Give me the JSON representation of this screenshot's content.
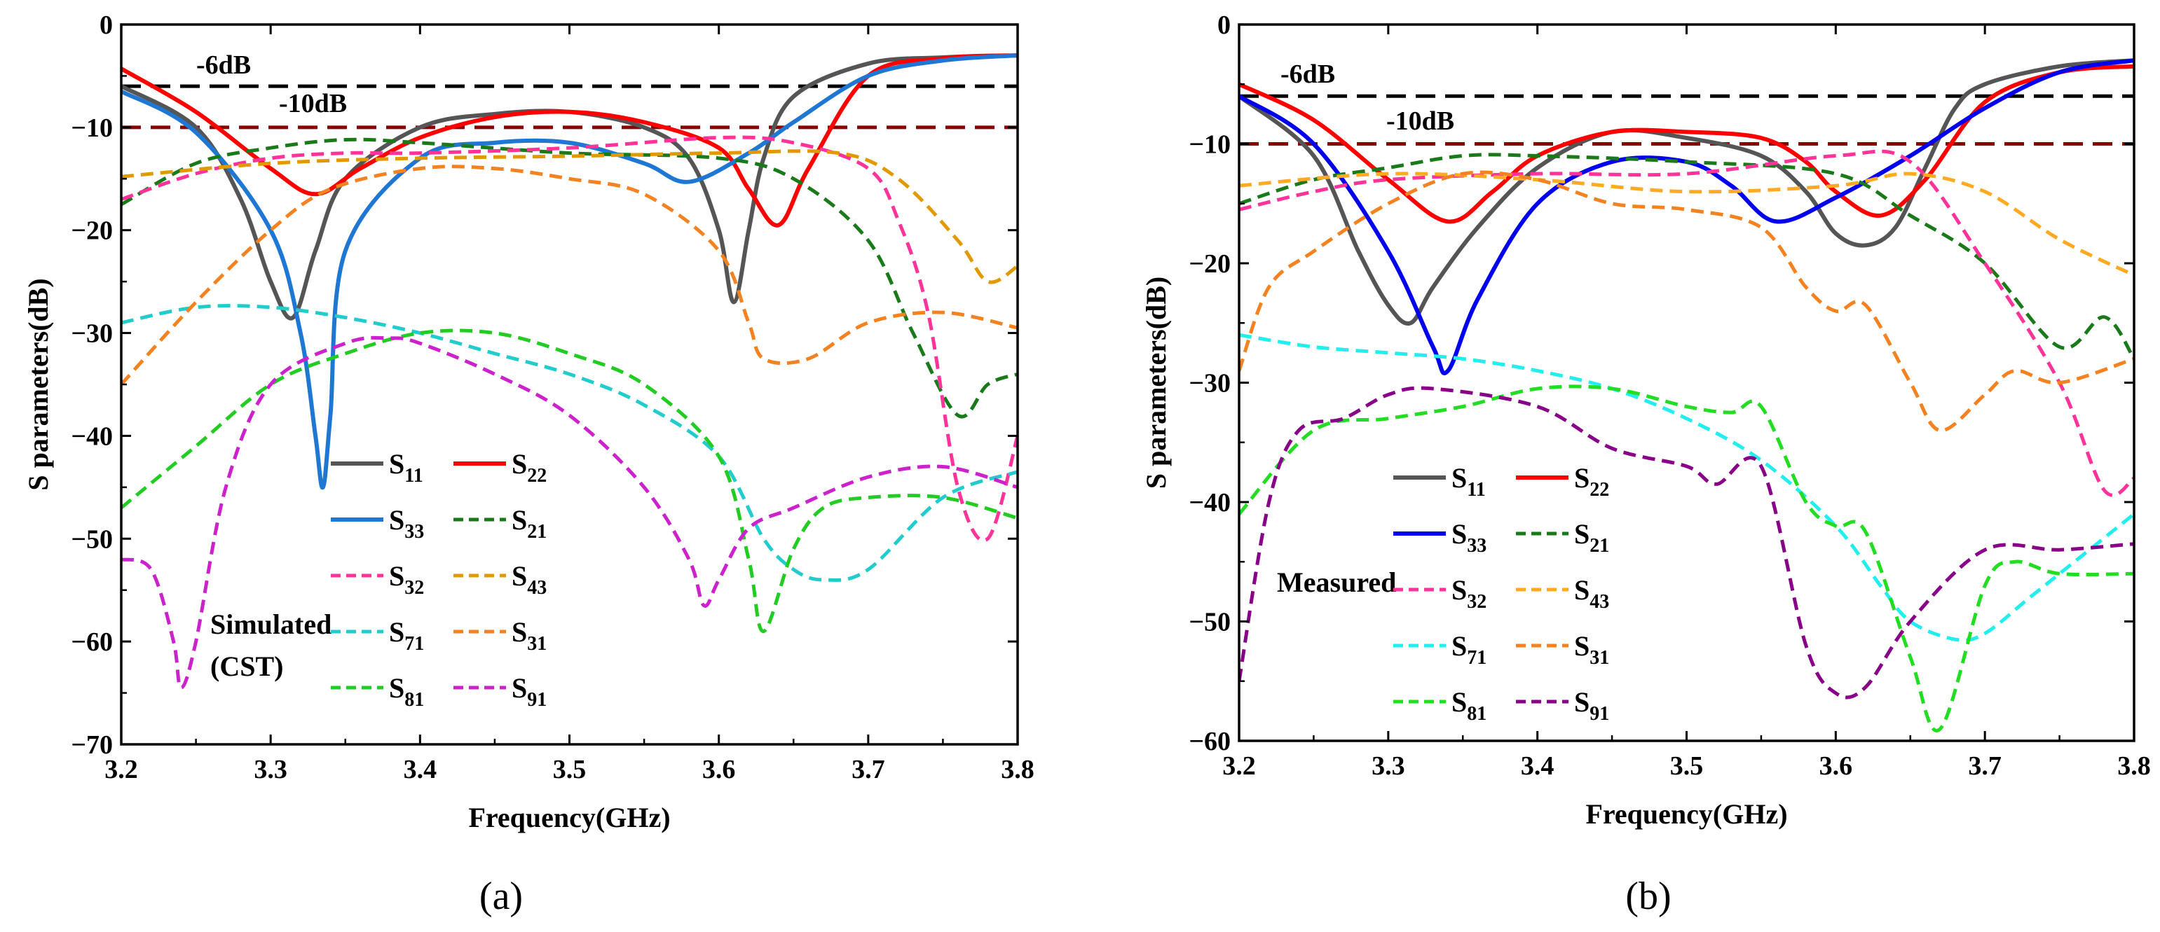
{
  "chart_data": [
    {
      "type": "line",
      "panel_label": "(a)",
      "xlabel": "Frequency(GHz)",
      "ylabel": "S parameters(dB)",
      "xlim": [
        3.2,
        3.8
      ],
      "ylim": [
        -70,
        0
      ],
      "xticks": [
        3.2,
        3.3,
        3.4,
        3.5,
        3.6,
        3.7,
        3.8
      ],
      "yticks": [
        0,
        -10,
        -20,
        -30,
        -40,
        -50,
        -60,
        -70
      ],
      "grid": false,
      "reference_lines": [
        {
          "name": "-6dB",
          "label": "-6dB",
          "value": -6,
          "color": "#000000"
        },
        {
          "name": "-10dB",
          "label": "-10dB",
          "value": -10,
          "color": "#8b0000"
        }
      ],
      "annotation": [
        "Simulated",
        "(CST)"
      ],
      "series": [
        {
          "name": "S11",
          "label": "S",
          "sub": "11",
          "color": "#555555",
          "dash": false,
          "x": [
            3.2,
            3.25,
            3.28,
            3.3,
            3.315,
            3.33,
            3.35,
            3.4,
            3.45,
            3.5,
            3.55,
            3.58,
            3.6,
            3.61,
            3.62,
            3.63,
            3.65,
            3.7,
            3.75,
            3.8
          ],
          "y": [
            -6,
            -10,
            -17,
            -25,
            -28.5,
            -22,
            -15,
            -10,
            -8.7,
            -8.5,
            -10,
            -13,
            -20,
            -27,
            -20,
            -13,
            -7,
            -3.8,
            -3.2,
            -3
          ]
        },
        {
          "name": "S22",
          "label": "S",
          "sub": "22",
          "color": "#ff0000",
          "dash": false,
          "x": [
            3.2,
            3.25,
            3.3,
            3.33,
            3.36,
            3.4,
            3.45,
            3.5,
            3.55,
            3.6,
            3.62,
            3.64,
            3.66,
            3.7,
            3.75,
            3.8
          ],
          "y": [
            -4.3,
            -8.5,
            -14,
            -16.5,
            -14,
            -11,
            -9,
            -8.5,
            -9.5,
            -12,
            -16,
            -19.5,
            -14,
            -5,
            -3.3,
            -3
          ]
        },
        {
          "name": "S33",
          "label": "S",
          "sub": "33",
          "color": "#1f77d4",
          "dash": false,
          "x": [
            3.2,
            3.25,
            3.3,
            3.32,
            3.33,
            3.335,
            3.34,
            3.35,
            3.4,
            3.45,
            3.5,
            3.55,
            3.58,
            3.62,
            3.65,
            3.7,
            3.75,
            3.8
          ],
          "y": [
            -6.5,
            -10.5,
            -20,
            -30,
            -40,
            -45,
            -38,
            -22,
            -13,
            -11.5,
            -11.5,
            -13.5,
            -15.3,
            -12.5,
            -9.5,
            -5,
            -3.5,
            -3
          ]
        },
        {
          "name": "S21",
          "label": "S",
          "sub": "21",
          "color": "#1a7a1a",
          "dash": true,
          "x": [
            3.2,
            3.25,
            3.3,
            3.35,
            3.4,
            3.5,
            3.6,
            3.65,
            3.7,
            3.73,
            3.76,
            3.78,
            3.8
          ],
          "y": [
            -17.5,
            -13.5,
            -12,
            -11.2,
            -11.5,
            -12.5,
            -13,
            -15,
            -21,
            -30,
            -38,
            -35,
            -34
          ]
        },
        {
          "name": "S32",
          "label": "S",
          "sub": "32",
          "color": "#ff3399",
          "dash": true,
          "x": [
            3.2,
            3.25,
            3.3,
            3.35,
            3.4,
            3.5,
            3.6,
            3.65,
            3.7,
            3.72,
            3.74,
            3.76,
            3.78,
            3.8
          ],
          "y": [
            -17,
            -14.5,
            -13,
            -12.5,
            -12.5,
            -12,
            -11,
            -11.5,
            -14,
            -19,
            -28,
            -45,
            -50,
            -40
          ]
        },
        {
          "name": "S43",
          "label": "S",
          "sub": "43",
          "color": "#e09a00",
          "dash": true,
          "x": [
            3.2,
            3.3,
            3.4,
            3.5,
            3.6,
            3.68,
            3.72,
            3.76,
            3.78,
            3.8
          ],
          "y": [
            -14.8,
            -13.5,
            -13,
            -12.8,
            -12.5,
            -12.5,
            -15,
            -21,
            -25,
            -23.5
          ]
        },
        {
          "name": "S71",
          "label": "S",
          "sub": "71",
          "color": "#22cccc",
          "dash": true,
          "x": [
            3.2,
            3.25,
            3.3,
            3.35,
            3.4,
            3.45,
            3.5,
            3.55,
            3.6,
            3.63,
            3.65,
            3.67,
            3.7,
            3.75,
            3.8
          ],
          "y": [
            -29,
            -27.5,
            -27.5,
            -28.5,
            -30,
            -32,
            -34,
            -37,
            -42,
            -50,
            -53,
            -54,
            -53,
            -46,
            -43.5
          ]
        },
        {
          "name": "S31",
          "label": "S",
          "sub": "31",
          "color": "#f58220",
          "dash": true,
          "x": [
            3.2,
            3.25,
            3.3,
            3.34,
            3.4,
            3.45,
            3.5,
            3.55,
            3.6,
            3.62,
            3.63,
            3.66,
            3.7,
            3.75,
            3.8
          ],
          "y": [
            -35,
            -27,
            -20,
            -16,
            -14,
            -14,
            -15,
            -16.5,
            -22,
            -29,
            -32.5,
            -32.5,
            -29,
            -28,
            -29.5
          ]
        },
        {
          "name": "S81",
          "label": "S",
          "sub": "81",
          "color": "#22cc22",
          "dash": true,
          "x": [
            3.2,
            3.25,
            3.3,
            3.35,
            3.4,
            3.45,
            3.5,
            3.55,
            3.6,
            3.62,
            3.63,
            3.65,
            3.67,
            3.7,
            3.75,
            3.8
          ],
          "y": [
            -47,
            -41,
            -35,
            -32,
            -30,
            -30,
            -32,
            -35,
            -42,
            -52,
            -59,
            -51,
            -47,
            -46,
            -46,
            -48
          ]
        },
        {
          "name": "S91",
          "label": "S",
          "sub": "91",
          "color": "#cc22cc",
          "dash": true,
          "x": [
            3.2,
            3.22,
            3.235,
            3.24,
            3.25,
            3.27,
            3.3,
            3.35,
            3.38,
            3.4,
            3.45,
            3.5,
            3.55,
            3.58,
            3.59,
            3.6,
            3.62,
            3.65,
            3.7,
            3.75,
            3.8
          ],
          "y": [
            -52,
            -53,
            -60,
            -64.5,
            -60,
            -45,
            -35,
            -31,
            -30.5,
            -31,
            -34,
            -38,
            -45,
            -52,
            -56.5,
            -54,
            -49,
            -47,
            -44,
            -43,
            -45
          ]
        }
      ]
    },
    {
      "type": "line",
      "panel_label": "(b)",
      "xlabel": "Frequency(GHz)",
      "ylabel": "S parameters(dB)",
      "xlim": [
        3.2,
        3.8
      ],
      "ylim": [
        -60,
        0
      ],
      "xticks": [
        3.2,
        3.3,
        3.4,
        3.5,
        3.6,
        3.7,
        3.8
      ],
      "yticks": [
        0,
        -10,
        -20,
        -30,
        -40,
        -50,
        -60
      ],
      "grid": false,
      "reference_lines": [
        {
          "name": "-6dB",
          "label": "-6dB",
          "value": -6,
          "color": "#000000"
        },
        {
          "name": "-10dB",
          "label": "-10dB",
          "value": -10,
          "color": "#8b0000"
        }
      ],
      "annotation": [
        "Measured"
      ],
      "series": [
        {
          "name": "S11",
          "label": "S",
          "sub": "11",
          "color": "#555555",
          "dash": false,
          "x": [
            3.2,
            3.25,
            3.28,
            3.3,
            3.315,
            3.33,
            3.36,
            3.4,
            3.45,
            3.5,
            3.55,
            3.58,
            3.6,
            3.62,
            3.64,
            3.66,
            3.68,
            3.7,
            3.75,
            3.8
          ],
          "y": [
            -6,
            -11,
            -19,
            -23.5,
            -25,
            -22,
            -17,
            -12,
            -9,
            -9.5,
            -11,
            -14,
            -17.5,
            -18.5,
            -17,
            -12,
            -7,
            -5,
            -3.5,
            -3
          ]
        },
        {
          "name": "S22",
          "label": "S",
          "sub": "22",
          "color": "#ff0000",
          "dash": false,
          "x": [
            3.2,
            3.25,
            3.3,
            3.34,
            3.37,
            3.4,
            3.45,
            3.5,
            3.55,
            3.58,
            3.6,
            3.63,
            3.66,
            3.7,
            3.75,
            3.8
          ],
          "y": [
            -5,
            -8,
            -13,
            -16.5,
            -14,
            -11,
            -9,
            -9,
            -9.5,
            -11.5,
            -14,
            -16,
            -13,
            -6.5,
            -4,
            -3.5
          ]
        },
        {
          "name": "S33",
          "label": "S",
          "sub": "33",
          "color": "#0000ee",
          "dash": false,
          "x": [
            3.2,
            3.25,
            3.3,
            3.33,
            3.34,
            3.36,
            3.4,
            3.45,
            3.5,
            3.53,
            3.56,
            3.6,
            3.65,
            3.7,
            3.75,
            3.8
          ],
          "y": [
            -6,
            -10,
            -19,
            -27,
            -29,
            -23,
            -15,
            -11.5,
            -11.5,
            -13.5,
            -16.5,
            -14.5,
            -11,
            -7,
            -4,
            -3
          ]
        },
        {
          "name": "S21",
          "label": "S",
          "sub": "21",
          "color": "#1a7a1a",
          "dash": true,
          "x": [
            3.2,
            3.25,
            3.3,
            3.35,
            3.4,
            3.5,
            3.6,
            3.65,
            3.7,
            3.75,
            3.78,
            3.8
          ],
          "y": [
            -15,
            -13,
            -12,
            -11,
            -11,
            -11.5,
            -12.5,
            -16,
            -20,
            -27,
            -24.5,
            -28
          ]
        },
        {
          "name": "S32",
          "label": "S",
          "sub": "32",
          "color": "#ff3399",
          "dash": true,
          "x": [
            3.2,
            3.25,
            3.3,
            3.4,
            3.5,
            3.6,
            3.65,
            3.7,
            3.75,
            3.78,
            3.8
          ],
          "y": [
            -15.5,
            -14,
            -13,
            -12.5,
            -12.5,
            -11,
            -11.5,
            -20,
            -30,
            -39,
            -38
          ]
        },
        {
          "name": "S43",
          "label": "S",
          "sub": "43",
          "color": "#ffaa22",
          "dash": true,
          "x": [
            3.2,
            3.3,
            3.4,
            3.5,
            3.6,
            3.65,
            3.7,
            3.75,
            3.8
          ],
          "y": [
            -13.5,
            -12.5,
            -13,
            -14,
            -13.5,
            -12.5,
            -14,
            -18,
            -21
          ]
        },
        {
          "name": "S71",
          "label": "S",
          "sub": "71",
          "color": "#22eeee",
          "dash": true,
          "x": [
            3.2,
            3.25,
            3.3,
            3.35,
            3.4,
            3.45,
            3.5,
            3.55,
            3.6,
            3.63,
            3.65,
            3.68,
            3.7,
            3.73,
            3.76,
            3.8
          ],
          "y": [
            -26,
            -27,
            -27.5,
            -28,
            -29,
            -30.5,
            -33,
            -36.5,
            -42,
            -47,
            -50,
            -51.5,
            -51,
            -48,
            -45,
            -41
          ]
        },
        {
          "name": "S31",
          "label": "S",
          "sub": "31",
          "color": "#f58220",
          "dash": true,
          "x": [
            3.2,
            3.22,
            3.25,
            3.3,
            3.35,
            3.4,
            3.45,
            3.5,
            3.55,
            3.58,
            3.6,
            3.62,
            3.65,
            3.67,
            3.7,
            3.72,
            3.75,
            3.8
          ],
          "y": [
            -29,
            -22,
            -19,
            -15,
            -12.5,
            -13,
            -15,
            -15.5,
            -17,
            -22,
            -24,
            -23.5,
            -30,
            -34,
            -31,
            -29,
            -30,
            -28
          ]
        },
        {
          "name": "S81",
          "label": "S",
          "sub": "81",
          "color": "#22dd22",
          "dash": true,
          "x": [
            3.2,
            3.25,
            3.3,
            3.35,
            3.4,
            3.45,
            3.5,
            3.53,
            3.55,
            3.58,
            3.6,
            3.62,
            3.65,
            3.67,
            3.7,
            3.72,
            3.75,
            3.8
          ],
          "y": [
            -41,
            -34,
            -33,
            -32,
            -30.5,
            -30.5,
            -32,
            -32.5,
            -32,
            -40,
            -42,
            -42.5,
            -53,
            -59,
            -47,
            -45,
            -46,
            -46
          ]
        },
        {
          "name": "S91",
          "label": "S",
          "sub": "91",
          "color": "#880088",
          "dash": true,
          "x": [
            3.2,
            3.22,
            3.24,
            3.27,
            3.3,
            3.33,
            3.4,
            3.45,
            3.5,
            3.52,
            3.55,
            3.58,
            3.6,
            3.62,
            3.65,
            3.7,
            3.75,
            3.8
          ],
          "y": [
            -55,
            -40,
            -34,
            -33,
            -31,
            -30.5,
            -32,
            -35.5,
            -37,
            -38.5,
            -37,
            -52,
            -56,
            -55.5,
            -50,
            -44,
            -44,
            -43.5
          ]
        }
      ]
    }
  ]
}
